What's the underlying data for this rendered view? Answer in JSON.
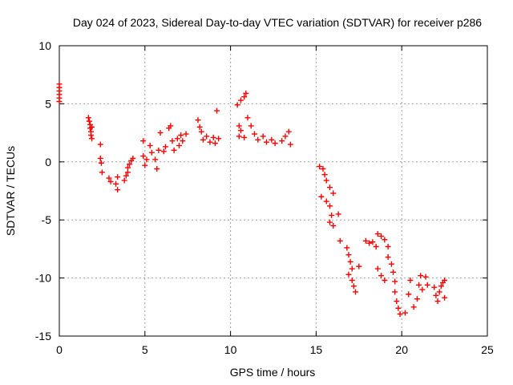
{
  "chart_data": {
    "type": "scatter",
    "title": "Day 024 of 2023, Sidereal Day-to-day VTEC variation (SDTVAR) for receiver p286",
    "xlabel": "GPS time / hours",
    "ylabel": "SDTVAR / TECUs",
    "xlim": [
      0,
      25
    ],
    "ylim": [
      -15,
      10
    ],
    "xticks": [
      0,
      5,
      10,
      15,
      20,
      25
    ],
    "yticks": [
      -15,
      -10,
      -5,
      0,
      5,
      10
    ],
    "grid": true,
    "marker": "plus",
    "marker_color": "#ff0000",
    "series": [
      {
        "values": [
          [
            0.0,
            6.7
          ],
          [
            0.0,
            6.4
          ],
          [
            0.0,
            6.1
          ],
          [
            0.0,
            5.8
          ],
          [
            0.0,
            5.5
          ],
          [
            0.0,
            5.2
          ],
          [
            1.7,
            3.8
          ],
          [
            1.75,
            3.5
          ],
          [
            1.8,
            3.2
          ],
          [
            1.8,
            2.9
          ],
          [
            1.85,
            2.6
          ],
          [
            1.85,
            2.3
          ],
          [
            1.9,
            2.0
          ],
          [
            1.9,
            3.0
          ],
          [
            2.4,
            1.5
          ],
          [
            2.4,
            0.3
          ],
          [
            2.45,
            -0.1
          ],
          [
            2.5,
            -0.9
          ],
          [
            2.9,
            -1.4
          ],
          [
            3.0,
            -1.7
          ],
          [
            3.3,
            -1.9
          ],
          [
            3.4,
            -2.4
          ],
          [
            3.4,
            -1.3
          ],
          [
            3.8,
            -1.6
          ],
          [
            3.9,
            -1.2
          ],
          [
            4.0,
            -0.9
          ],
          [
            4.0,
            -0.5
          ],
          [
            4.1,
            -0.2
          ],
          [
            4.2,
            0.1
          ],
          [
            4.3,
            0.3
          ],
          [
            4.9,
            1.8
          ],
          [
            4.9,
            0.5
          ],
          [
            5.0,
            -0.3
          ],
          [
            5.1,
            0.2
          ],
          [
            5.3,
            1.4
          ],
          [
            5.4,
            0.8
          ],
          [
            5.6,
            0.2
          ],
          [
            5.7,
            -0.6
          ],
          [
            5.8,
            1.0
          ],
          [
            5.9,
            2.5
          ],
          [
            6.1,
            0.9
          ],
          [
            6.2,
            1.3
          ],
          [
            6.4,
            2.9
          ],
          [
            6.5,
            3.1
          ],
          [
            6.6,
            1.8
          ],
          [
            6.7,
            1.0
          ],
          [
            6.9,
            2.0
          ],
          [
            7.0,
            1.4
          ],
          [
            7.1,
            2.3
          ],
          [
            7.2,
            1.8
          ],
          [
            7.4,
            2.4
          ],
          [
            8.1,
            3.6
          ],
          [
            8.2,
            3.0
          ],
          [
            8.3,
            2.6
          ],
          [
            8.4,
            1.9
          ],
          [
            8.6,
            2.2
          ],
          [
            8.8,
            1.7
          ],
          [
            9.0,
            2.1
          ],
          [
            9.1,
            1.6
          ],
          [
            9.2,
            4.4
          ],
          [
            9.3,
            2.0
          ],
          [
            10.4,
            4.9
          ],
          [
            10.6,
            5.3
          ],
          [
            10.8,
            5.6
          ],
          [
            10.9,
            5.9
          ],
          [
            10.5,
            3.1
          ],
          [
            10.6,
            2.7
          ],
          [
            10.5,
            2.2
          ],
          [
            10.8,
            2.1
          ],
          [
            11.0,
            3.8
          ],
          [
            11.2,
            3.1
          ],
          [
            11.4,
            2.4
          ],
          [
            11.6,
            1.9
          ],
          [
            11.9,
            2.2
          ],
          [
            12.1,
            1.7
          ],
          [
            12.4,
            1.9
          ],
          [
            12.6,
            1.6
          ],
          [
            13.0,
            1.8
          ],
          [
            13.2,
            2.2
          ],
          [
            13.4,
            2.6
          ],
          [
            13.5,
            1.5
          ],
          [
            15.2,
            -0.4
          ],
          [
            15.4,
            -0.6
          ],
          [
            15.5,
            -1.1
          ],
          [
            15.6,
            -1.6
          ],
          [
            15.8,
            -2.2
          ],
          [
            16.0,
            -2.7
          ],
          [
            15.3,
            -3.0
          ],
          [
            15.6,
            -3.4
          ],
          [
            15.8,
            -3.8
          ],
          [
            15.9,
            -4.6
          ],
          [
            15.8,
            -5.2
          ],
          [
            16.0,
            -5.5
          ],
          [
            16.3,
            -4.5
          ],
          [
            16.4,
            -6.8
          ],
          [
            16.8,
            -7.4
          ],
          [
            16.9,
            -8.0
          ],
          [
            17.0,
            -8.6
          ],
          [
            17.1,
            -9.2
          ],
          [
            16.9,
            -9.7
          ],
          [
            17.1,
            -10.2
          ],
          [
            17.2,
            -10.7
          ],
          [
            17.3,
            -11.2
          ],
          [
            17.5,
            -9.0
          ],
          [
            17.9,
            -6.8
          ],
          [
            18.1,
            -7.0
          ],
          [
            18.3,
            -6.9
          ],
          [
            18.5,
            -7.3
          ],
          [
            18.6,
            -6.2
          ],
          [
            18.8,
            -6.4
          ],
          [
            19.0,
            -6.7
          ],
          [
            19.2,
            -7.3
          ],
          [
            19.2,
            -8.2
          ],
          [
            18.6,
            -9.2
          ],
          [
            18.8,
            -9.8
          ],
          [
            19.0,
            -10.2
          ],
          [
            19.4,
            -8.8
          ],
          [
            19.5,
            -9.5
          ],
          [
            19.6,
            -10.3
          ],
          [
            19.6,
            -11.2
          ],
          [
            19.7,
            -12.0
          ],
          [
            19.8,
            -12.6
          ],
          [
            19.9,
            -13.1
          ],
          [
            20.2,
            -13.0
          ],
          [
            20.4,
            -11.4
          ],
          [
            20.5,
            -10.2
          ],
          [
            20.7,
            -12.5
          ],
          [
            20.9,
            -11.8
          ],
          [
            21.0,
            -10.6
          ],
          [
            21.1,
            -9.8
          ],
          [
            21.2,
            -11.0
          ],
          [
            21.4,
            -9.9
          ],
          [
            21.5,
            -10.6
          ],
          [
            21.9,
            -10.8
          ],
          [
            22.0,
            -11.5
          ],
          [
            22.1,
            -12.0
          ],
          [
            22.2,
            -11.2
          ],
          [
            22.3,
            -10.7
          ],
          [
            22.4,
            -10.4
          ],
          [
            22.5,
            -11.7
          ],
          [
            22.5,
            -10.2
          ]
        ]
      }
    ]
  }
}
